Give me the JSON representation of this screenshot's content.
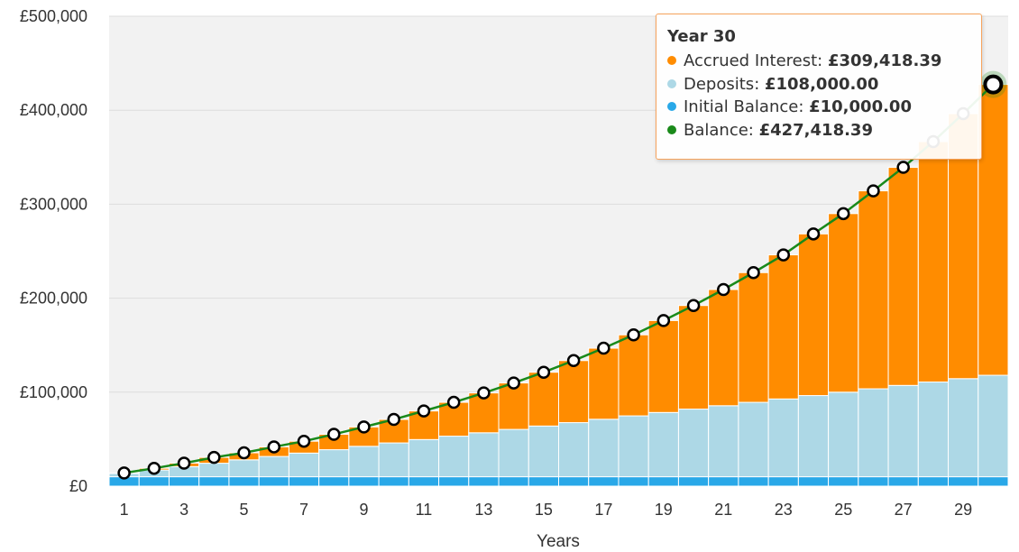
{
  "chart_data": {
    "type": "bar",
    "stacked": true,
    "xlabel": "Years",
    "ylabel": "",
    "ylim": [
      0,
      500000
    ],
    "y_ticks": [
      "£0",
      "£100,000",
      "£200,000",
      "£300,000",
      "£400,000",
      "£500,000"
    ],
    "x": [
      1,
      2,
      3,
      4,
      5,
      6,
      7,
      8,
      9,
      10,
      11,
      12,
      13,
      14,
      15,
      16,
      17,
      18,
      19,
      20,
      21,
      22,
      23,
      24,
      25,
      26,
      27,
      28,
      29,
      30
    ],
    "x_tick_labels": [
      "1",
      "3",
      "5",
      "7",
      "9",
      "11",
      "13",
      "15",
      "17",
      "19",
      "21",
      "23",
      "25",
      "27",
      "29"
    ],
    "grid": true,
    "series": [
      {
        "name": "Initial Balance",
        "color": "#29a8e8",
        "values": [
          10000,
          10000,
          10000,
          10000,
          10000,
          10000,
          10000,
          10000,
          10000,
          10000,
          10000,
          10000,
          10000,
          10000,
          10000,
          10000,
          10000,
          10000,
          10000,
          10000,
          10000,
          10000,
          10000,
          10000,
          10000,
          10000,
          10000,
          10000,
          10000,
          10000
        ]
      },
      {
        "name": "Deposits",
        "color": "#add8e6",
        "values": [
          3600,
          7200,
          10800,
          14400,
          18000,
          21600,
          25200,
          28800,
          32400,
          36000,
          39600,
          43200,
          46800,
          50400,
          54000,
          57600,
          61200,
          64800,
          68400,
          72000,
          75600,
          79200,
          82800,
          86400,
          90000,
          93600,
          97200,
          100800,
          104400,
          108000
        ]
      },
      {
        "name": "Accrued Interest",
        "color": "#ff8c00",
        "values": [
          400,
          1800,
          3700,
          6200,
          7500,
          10200,
          12600,
          16400,
          20600,
          25000,
          30400,
          36000,
          42400,
          49400,
          57200,
          66000,
          75600,
          86200,
          97800,
          110200,
          123600,
          138000,
          153300,
          172000,
          190000,
          210600,
          232000,
          255800,
          282000,
          309418.39
        ]
      },
      {
        "name": "Balance",
        "type": "line",
        "color": "#1a8a1a",
        "values": [
          14000,
          19000,
          24500,
          30600,
          35500,
          41800,
          47800,
          55200,
          63000,
          71000,
          80000,
          89200,
          99200,
          109800,
          121200,
          133600,
          146800,
          161000,
          176200,
          192200,
          209200,
          227200,
          246100,
          268400,
          290000,
          314200,
          339200,
          366600,
          396400,
          427418.39
        ]
      }
    ]
  },
  "tooltip": {
    "title": "Year 30",
    "rows": [
      {
        "label": "Accrued Interest: ",
        "value": "£309,418.39",
        "color": "#ff8c00"
      },
      {
        "label": "Deposits: ",
        "value": "£108,000.00",
        "color": "#add8e6"
      },
      {
        "label": "Initial Balance: ",
        "value": "£10,000.00",
        "color": "#29a8e8"
      },
      {
        "label": "Balance: ",
        "value": "£427,418.39",
        "color": "#1a8a1a"
      }
    ]
  }
}
